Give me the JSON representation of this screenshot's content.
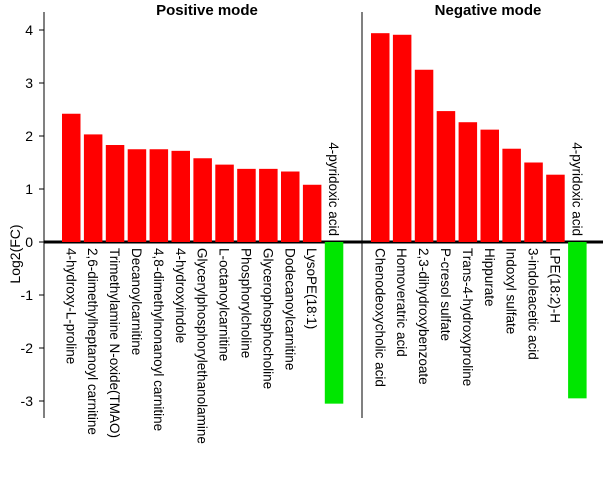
{
  "chart_data": {
    "type": "bar",
    "ylabel": "Log2(FC)",
    "ylim": [
      -3.3,
      4.3
    ],
    "yticks": [
      4,
      3,
      2,
      1,
      0,
      -1,
      -2,
      -3
    ],
    "colors": {
      "positive": "#ff0000",
      "negative": "#00e600",
      "axis": "#000000"
    },
    "panels": [
      {
        "title": "Positive mode",
        "categories": [
          "4-hydroxy-L-proline",
          "2,6-dimethylheptanoyl carnitine",
          "Trimethylamine N-oxide(TMAO)",
          "Decanoylcarnitine",
          "4,8-dimethylnonanoyl carnitine",
          "4-hydroxyindole",
          "Glycerylphosphorylethanolamine",
          "L-octanoylcarnitine",
          "Phosphorylcholine",
          "Glycerophosphocholine",
          "Dodecanoylcarnitine",
          "LysoPE(18:1)",
          "4-pyridoxic acid"
        ],
        "values": [
          2.42,
          2.03,
          1.83,
          1.75,
          1.75,
          1.72,
          1.58,
          1.46,
          1.38,
          1.38,
          1.33,
          1.08,
          -3.05
        ]
      },
      {
        "title": "Negative mode",
        "categories": [
          "Chenodeoxycholic acid",
          "Homoveratric acid",
          "2,3-dihydroxybenzoate",
          "P-cresol sulfate",
          "Trans-4-hydroxyproline",
          "Hippurate",
          "Indoxyl sulfate",
          "3-indoleacetic acid",
          "LPE(18:2)-H",
          "4-pyridoxic acid"
        ],
        "values": [
          3.94,
          3.91,
          3.25,
          2.47,
          2.26,
          2.12,
          1.76,
          1.5,
          1.27,
          -2.95
        ]
      }
    ]
  }
}
